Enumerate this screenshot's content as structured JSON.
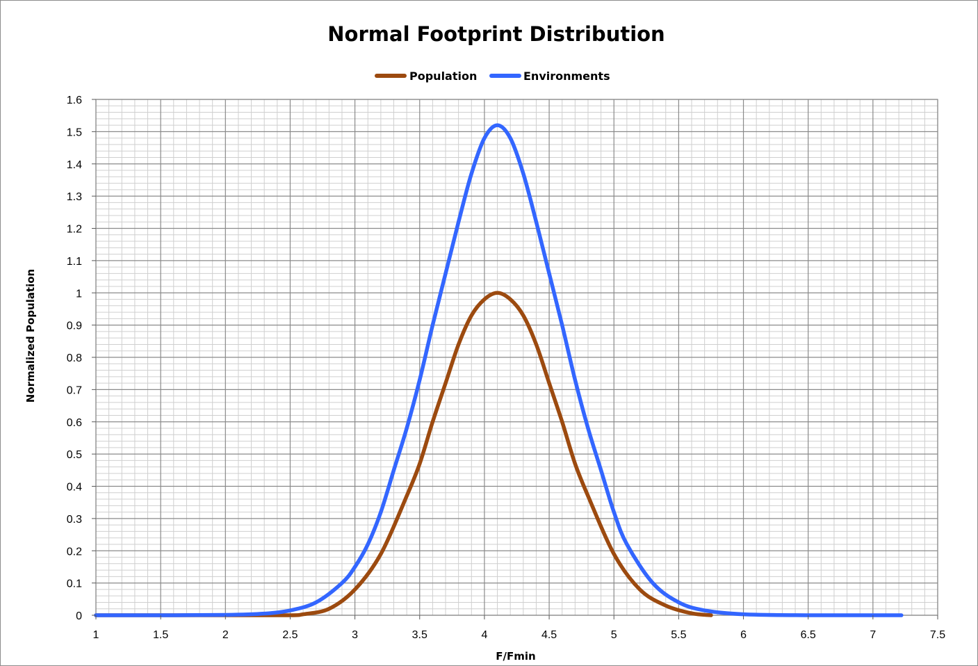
{
  "chart_data": {
    "type": "line",
    "title": "Normal Footprint Distribution",
    "xlabel": "F/Fmin",
    "ylabel": "Normalized Population",
    "xlim": [
      1,
      7.5
    ],
    "ylim": [
      0,
      1.6
    ],
    "x_ticks": [
      "1",
      "1.5",
      "2",
      "2.5",
      "3",
      "3.5",
      "4",
      "4.5",
      "5",
      "5.5",
      "6",
      "6.5",
      "7",
      "7.5"
    ],
    "y_ticks": [
      "0",
      "0.1",
      "0.2",
      "0.3",
      "0.4",
      "0.5",
      "0.6",
      "0.7",
      "0.8",
      "0.9",
      "1",
      "1.1",
      "1.2",
      "1.3",
      "1.4",
      "1.5",
      "1.6"
    ],
    "grid": true,
    "legend_position": "top",
    "series": [
      {
        "name": "Population",
        "color": "#9c4a0f",
        "x": [
          1.0,
          1.5,
          2.0,
          2.5,
          2.6,
          2.8,
          3.0,
          3.2,
          3.4,
          3.5,
          3.6,
          3.7,
          3.8,
          3.9,
          4.0,
          4.1,
          4.2,
          4.3,
          4.4,
          4.5,
          4.6,
          4.7,
          4.8,
          5.0,
          5.2,
          5.4,
          5.6,
          5.75
        ],
        "y": [
          0.0,
          0.0,
          0.0,
          0.0,
          0.003,
          0.02,
          0.08,
          0.19,
          0.37,
          0.47,
          0.6,
          0.72,
          0.84,
          0.93,
          0.98,
          1.0,
          0.98,
          0.93,
          0.84,
          0.72,
          0.6,
          0.47,
          0.37,
          0.19,
          0.08,
          0.03,
          0.006,
          0.0
        ]
      },
      {
        "name": "Environments",
        "color": "#3366ff",
        "x": [
          1.0,
          1.5,
          2.0,
          2.3,
          2.5,
          2.7,
          2.9,
          3.0,
          3.1,
          3.2,
          3.3,
          3.4,
          3.5,
          3.6,
          3.7,
          3.8,
          3.9,
          4.0,
          4.1,
          4.2,
          4.3,
          4.4,
          4.5,
          4.6,
          4.7,
          4.8,
          4.9,
          5.0,
          5.1,
          5.3,
          5.5,
          5.7,
          6.0,
          6.5,
          7.0,
          7.22
        ],
        "y": [
          0.0,
          0.0,
          0.001,
          0.005,
          0.015,
          0.04,
          0.1,
          0.15,
          0.22,
          0.32,
          0.45,
          0.58,
          0.73,
          0.9,
          1.06,
          1.22,
          1.37,
          1.48,
          1.52,
          1.48,
          1.37,
          1.22,
          1.06,
          0.9,
          0.73,
          0.58,
          0.45,
          0.32,
          0.22,
          0.1,
          0.04,
          0.015,
          0.003,
          0.0,
          0.0,
          0.0
        ]
      }
    ]
  }
}
